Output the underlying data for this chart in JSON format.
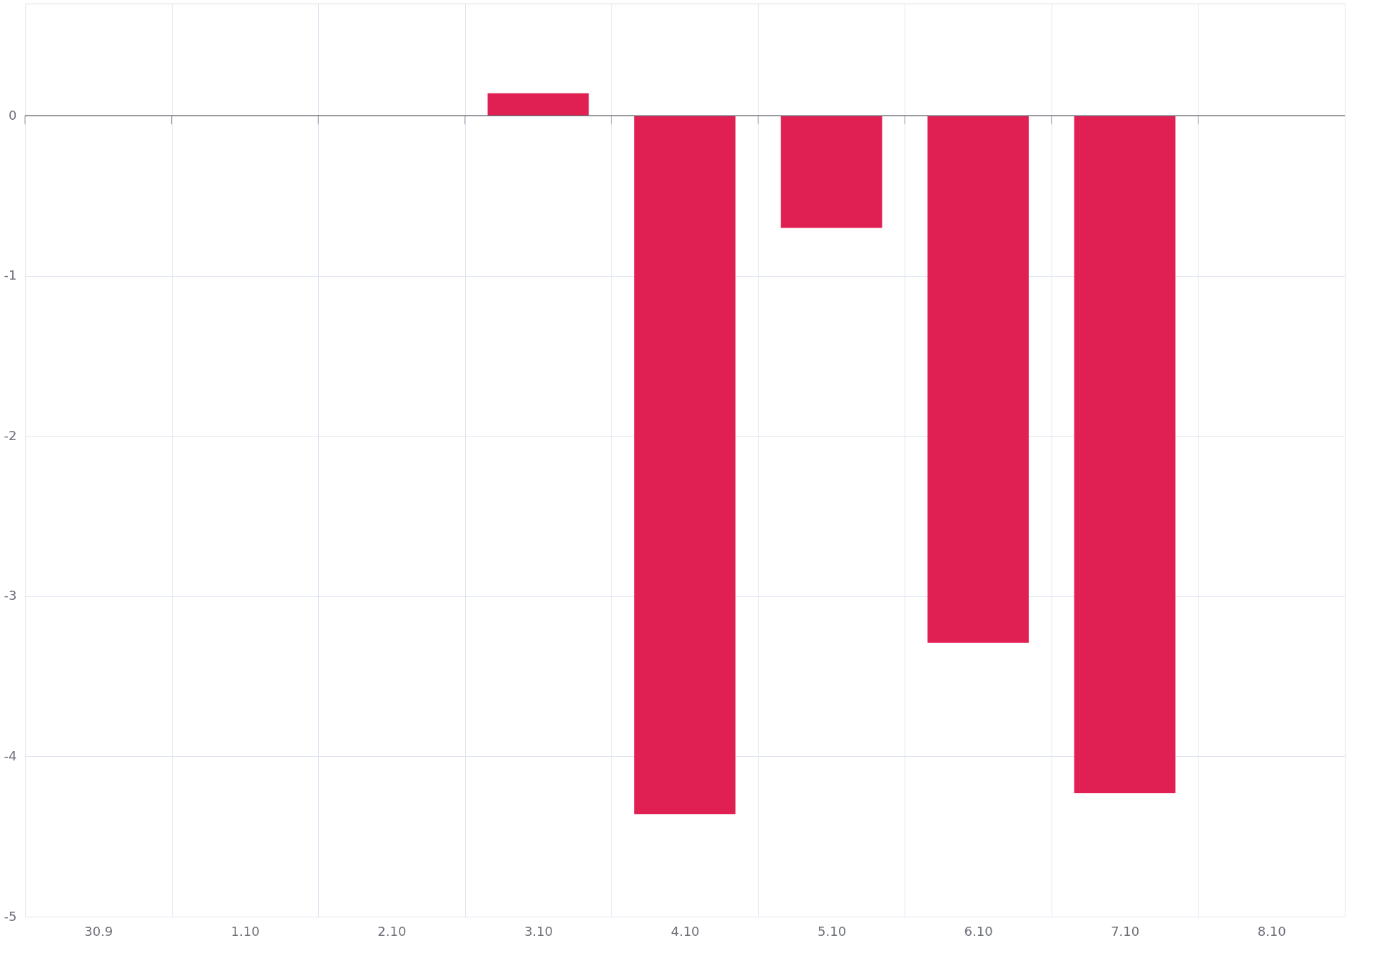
{
  "chart_data": {
    "type": "bar",
    "categories": [
      "30.9",
      "1.10",
      "2.10",
      "3.10",
      "4.10",
      "5.10",
      "6.10",
      "7.10",
      "8.10"
    ],
    "values": [
      null,
      null,
      null,
      0.14,
      -4.36,
      -0.7,
      -3.29,
      -4.23,
      null
    ],
    "color": "#e01f52",
    "ylim": [
      -5,
      0.7
    ],
    "yticks": [
      -5,
      -4,
      -3,
      -2,
      -1,
      0
    ],
    "grid": true
  }
}
